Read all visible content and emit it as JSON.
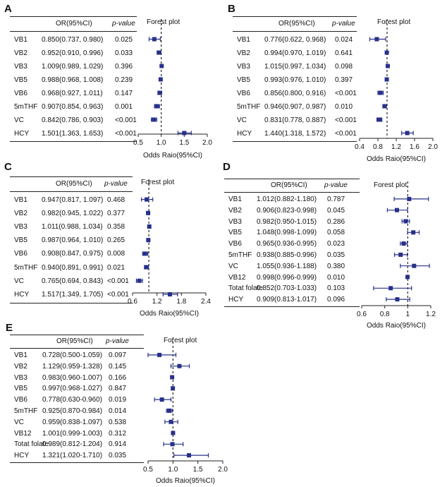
{
  "chart_data": [
    {
      "panel": "A",
      "type": "forest",
      "title": "Forest plot",
      "xlabel": "Odds Raio(95%CI)",
      "col_or_label": "OR(95%CI)",
      "col_p_label": "p-value",
      "xlim": [
        0.5,
        2.0
      ],
      "xticks": [
        "0.5",
        "1.0",
        "1.5",
        "2.0"
      ],
      "ref": 1.0,
      "rows": [
        {
          "label": "VB1",
          "or_text": "0.850(0.737, 0.980)",
          "p": "0.025",
          "or": 0.85,
          "lo": 0.737,
          "hi": 0.98
        },
        {
          "label": "VB2",
          "or_text": "0.952(0.910, 0.996)",
          "p": "0.033",
          "or": 0.952,
          "lo": 0.91,
          "hi": 0.996
        },
        {
          "label": "VB3",
          "or_text": "1.009(0.989, 1.029)",
          "p": "0.396",
          "or": 1.009,
          "lo": 0.989,
          "hi": 1.029
        },
        {
          "label": "VB5",
          "or_text": "0.988(0.968, 1.008)",
          "p": "0.239",
          "or": 0.988,
          "lo": 0.968,
          "hi": 1.008
        },
        {
          "label": "VB6",
          "or_text": "0.968(0.927, 1.011)",
          "p": "0.147",
          "or": 0.968,
          "lo": 0.927,
          "hi": 1.011
        },
        {
          "label": "5mTHF",
          "or_text": "0.907(0.854, 0.963)",
          "p": "0.001",
          "or": 0.907,
          "lo": 0.854,
          "hi": 0.963
        },
        {
          "label": "VC",
          "or_text": "0.842(0.786, 0.903)",
          "p": "<0.001",
          "or": 0.842,
          "lo": 0.786,
          "hi": 0.903
        },
        {
          "label": "HCY",
          "or_text": "1.501(1.363, 1.653)",
          "p": "<0.001",
          "or": 1.501,
          "lo": 1.363,
          "hi": 1.653
        }
      ]
    },
    {
      "panel": "B",
      "type": "forest",
      "title": "Forest plot",
      "xlabel": "Odds Raio(95%CI)",
      "col_or_label": "OR(95%CI)",
      "col_p_label": "p-value",
      "xlim": [
        0.4,
        2.0
      ],
      "xticks": [
        "0.4",
        "0.8",
        "1.2",
        "1.6",
        "2.0"
      ],
      "ref": 1.0,
      "rows": [
        {
          "label": "VB1",
          "or_text": "0.776(0.622, 0.968)",
          "p": "0.024",
          "or": 0.776,
          "lo": 0.622,
          "hi": 0.968
        },
        {
          "label": "VB2",
          "or_text": "0.994(0.970, 1.019)",
          "p": "0.641",
          "or": 0.994,
          "lo": 0.97,
          "hi": 1.019
        },
        {
          "label": "VB3",
          "or_text": "1.015(0.997, 1.034)",
          "p": "0.098",
          "or": 1.015,
          "lo": 0.997,
          "hi": 1.034
        },
        {
          "label": "VB5",
          "or_text": "0.993(0.976, 1.010)",
          "p": "0.397",
          "or": 0.993,
          "lo": 0.976,
          "hi": 1.01
        },
        {
          "label": "VB6",
          "or_text": "0.856(0.800, 0.916)",
          "p": "<0.001",
          "or": 0.856,
          "lo": 0.8,
          "hi": 0.916
        },
        {
          "label": "5mTHF",
          "or_text": "0.946(0.907, 0.987)",
          "p": "0.010",
          "or": 0.946,
          "lo": 0.907,
          "hi": 0.987
        },
        {
          "label": "VC",
          "or_text": "0.831(0.778, 0.887)",
          "p": "<0.001",
          "or": 0.831,
          "lo": 0.778,
          "hi": 0.887
        },
        {
          "label": "HCY",
          "or_text": "1.440(1.318, 1.572)",
          "p": "<0.001",
          "or": 1.44,
          "lo": 1.318,
          "hi": 1.572
        }
      ]
    },
    {
      "panel": "C",
      "type": "forest",
      "title": "Forest plot",
      "xlabel": "Odds Raio(95%CI)",
      "col_or_label": "OR(95%CI)",
      "col_p_label": "p-value",
      "xlim": [
        0.6,
        2.4
      ],
      "xticks": [
        "0.6",
        "1.2",
        "1.8",
        "2.4"
      ],
      "ref": 1.0,
      "rows": [
        {
          "label": "VB1",
          "or_text": "0.947(0.817, 1.097)",
          "p": "0.468",
          "or": 0.947,
          "lo": 0.817,
          "hi": 1.097
        },
        {
          "label": "VB2",
          "or_text": "0.982(0.945, 1.022)",
          "p": "0.377",
          "or": 0.982,
          "lo": 0.945,
          "hi": 1.022
        },
        {
          "label": "VB3",
          "or_text": "1.011(0.988, 1.034)",
          "p": "0.358",
          "or": 1.011,
          "lo": 0.988,
          "hi": 1.034
        },
        {
          "label": "VB5",
          "or_text": "0.987(0.964, 1.010)",
          "p": "0.265",
          "or": 0.987,
          "lo": 0.964,
          "hi": 1.01
        },
        {
          "label": "VB6",
          "or_text": "0.908(0.847, 0.975)",
          "p": "0.008",
          "or": 0.908,
          "lo": 0.847,
          "hi": 0.975
        },
        {
          "label": "5mTHF",
          "or_text": "0.940(0.891, 0.991)",
          "p": "0.021",
          "or": 0.94,
          "lo": 0.891,
          "hi": 0.991
        },
        {
          "label": "VC",
          "or_text": "0.765(0.694, 0.843)",
          "p": "<0.001",
          "or": 0.765,
          "lo": 0.694,
          "hi": 0.843
        },
        {
          "label": "HCY",
          "or_text": "1.517(1.349, 1.705)",
          "p": "<0.001",
          "or": 1.517,
          "lo": 1.349,
          "hi": 1.705
        }
      ]
    },
    {
      "panel": "D",
      "type": "forest",
      "title": "Forest plot",
      "xlabel": "Odds Raio(95%CI)",
      "col_or_label": "OR(95%CI)",
      "col_p_label": "p-value",
      "xlim": [
        0.6,
        1.2
      ],
      "xticks": [
        "0.6",
        "0.8",
        "1",
        "1.2"
      ],
      "ref": 1.0,
      "rows": [
        {
          "label": "VB1",
          "or_text": "1.012(0.882-1.180)",
          "p": "0.787",
          "or": 1.012,
          "lo": 0.882,
          "hi": 1.18
        },
        {
          "label": "VB2",
          "or_text": "0.906(0.823-0.998)",
          "p": "0.045",
          "or": 0.906,
          "lo": 0.823,
          "hi": 0.998
        },
        {
          "label": "VB3",
          "or_text": "0.982(0.950-1.015)",
          "p": "0.286",
          "or": 0.982,
          "lo": 0.95,
          "hi": 1.015
        },
        {
          "label": "VB5",
          "or_text": "1.048(0.998-1.099)",
          "p": "0.058",
          "or": 1.048,
          "lo": 0.998,
          "hi": 1.099
        },
        {
          "label": "VB6",
          "or_text": "0.965(0.936-0.995)",
          "p": "0.023",
          "or": 0.965,
          "lo": 0.936,
          "hi": 0.995
        },
        {
          "label": "5mTHF",
          "or_text": "0.938(0.885-0.996)",
          "p": "0.035",
          "or": 0.938,
          "lo": 0.885,
          "hi": 0.996
        },
        {
          "label": "VC",
          "or_text": "1.055(0.936-1.188)",
          "p": "0.380",
          "or": 1.055,
          "lo": 0.936,
          "hi": 1.188
        },
        {
          "label": "VB12",
          "or_text": "0.998(0.996-0.999)",
          "p": "0.010",
          "or": 0.998,
          "lo": 0.996,
          "hi": 0.999
        },
        {
          "label": "Totat folate",
          "or_text": "0.852(0.703-1.033)",
          "p": "0.103",
          "or": 0.852,
          "lo": 0.703,
          "hi": 1.033
        },
        {
          "label": "HCY",
          "or_text": "0.909(0.813-1.017)",
          "p": "0.096",
          "or": 0.909,
          "lo": 0.813,
          "hi": 1.017
        }
      ]
    },
    {
      "panel": "E",
      "type": "forest",
      "title": "Forest plot",
      "xlabel": "Odds Raio(95%CI)",
      "col_or_label": "OR(95%CI)",
      "col_p_label": "p-value",
      "xlim": [
        0.5,
        2.0
      ],
      "xticks": [
        "0.5",
        "1.0",
        "1.5",
        "2.0"
      ],
      "ref": 1.0,
      "rows": [
        {
          "label": "VB1",
          "or_text": "0.728(0.500-1.059)",
          "p": "0.097",
          "or": 0.728,
          "lo": 0.5,
          "hi": 1.059
        },
        {
          "label": "VB2",
          "or_text": "1.129(0.959-1.328)",
          "p": "0.145",
          "or": 1.129,
          "lo": 0.959,
          "hi": 1.328
        },
        {
          "label": "VB3",
          "or_text": "0.983(0.960-1.007)",
          "p": "0.166",
          "or": 0.983,
          "lo": 0.96,
          "hi": 1.007
        },
        {
          "label": "VB5",
          "or_text": "0.997(0.968-1.027)",
          "p": "0.847",
          "or": 0.997,
          "lo": 0.968,
          "hi": 1.027
        },
        {
          "label": "VB6",
          "or_text": "0.778(0.630-0.960)",
          "p": "0.019",
          "or": 0.778,
          "lo": 0.63,
          "hi": 0.96
        },
        {
          "label": "5mTHF",
          "or_text": "0.925(0.870-0.984)",
          "p": "0.014",
          "or": 0.925,
          "lo": 0.87,
          "hi": 0.984
        },
        {
          "label": "VC",
          "or_text": "0.959(0.838-1.097)",
          "p": "0.538",
          "or": 0.959,
          "lo": 0.838,
          "hi": 1.097
        },
        {
          "label": "VB12",
          "or_text": "1.001(0.999-1.003)",
          "p": "0.312",
          "or": 1.001,
          "lo": 0.999,
          "hi": 1.003
        },
        {
          "label": "Totat folate",
          "or_text": "0.989(0.812-1.204)",
          "p": "0.914",
          "or": 0.989,
          "lo": 0.812,
          "hi": 1.204
        },
        {
          "label": "HCY",
          "or_text": "1.321(1.020-1.710)",
          "p": "0.035",
          "or": 1.321,
          "lo": 1.02,
          "hi": 1.71
        }
      ]
    }
  ]
}
